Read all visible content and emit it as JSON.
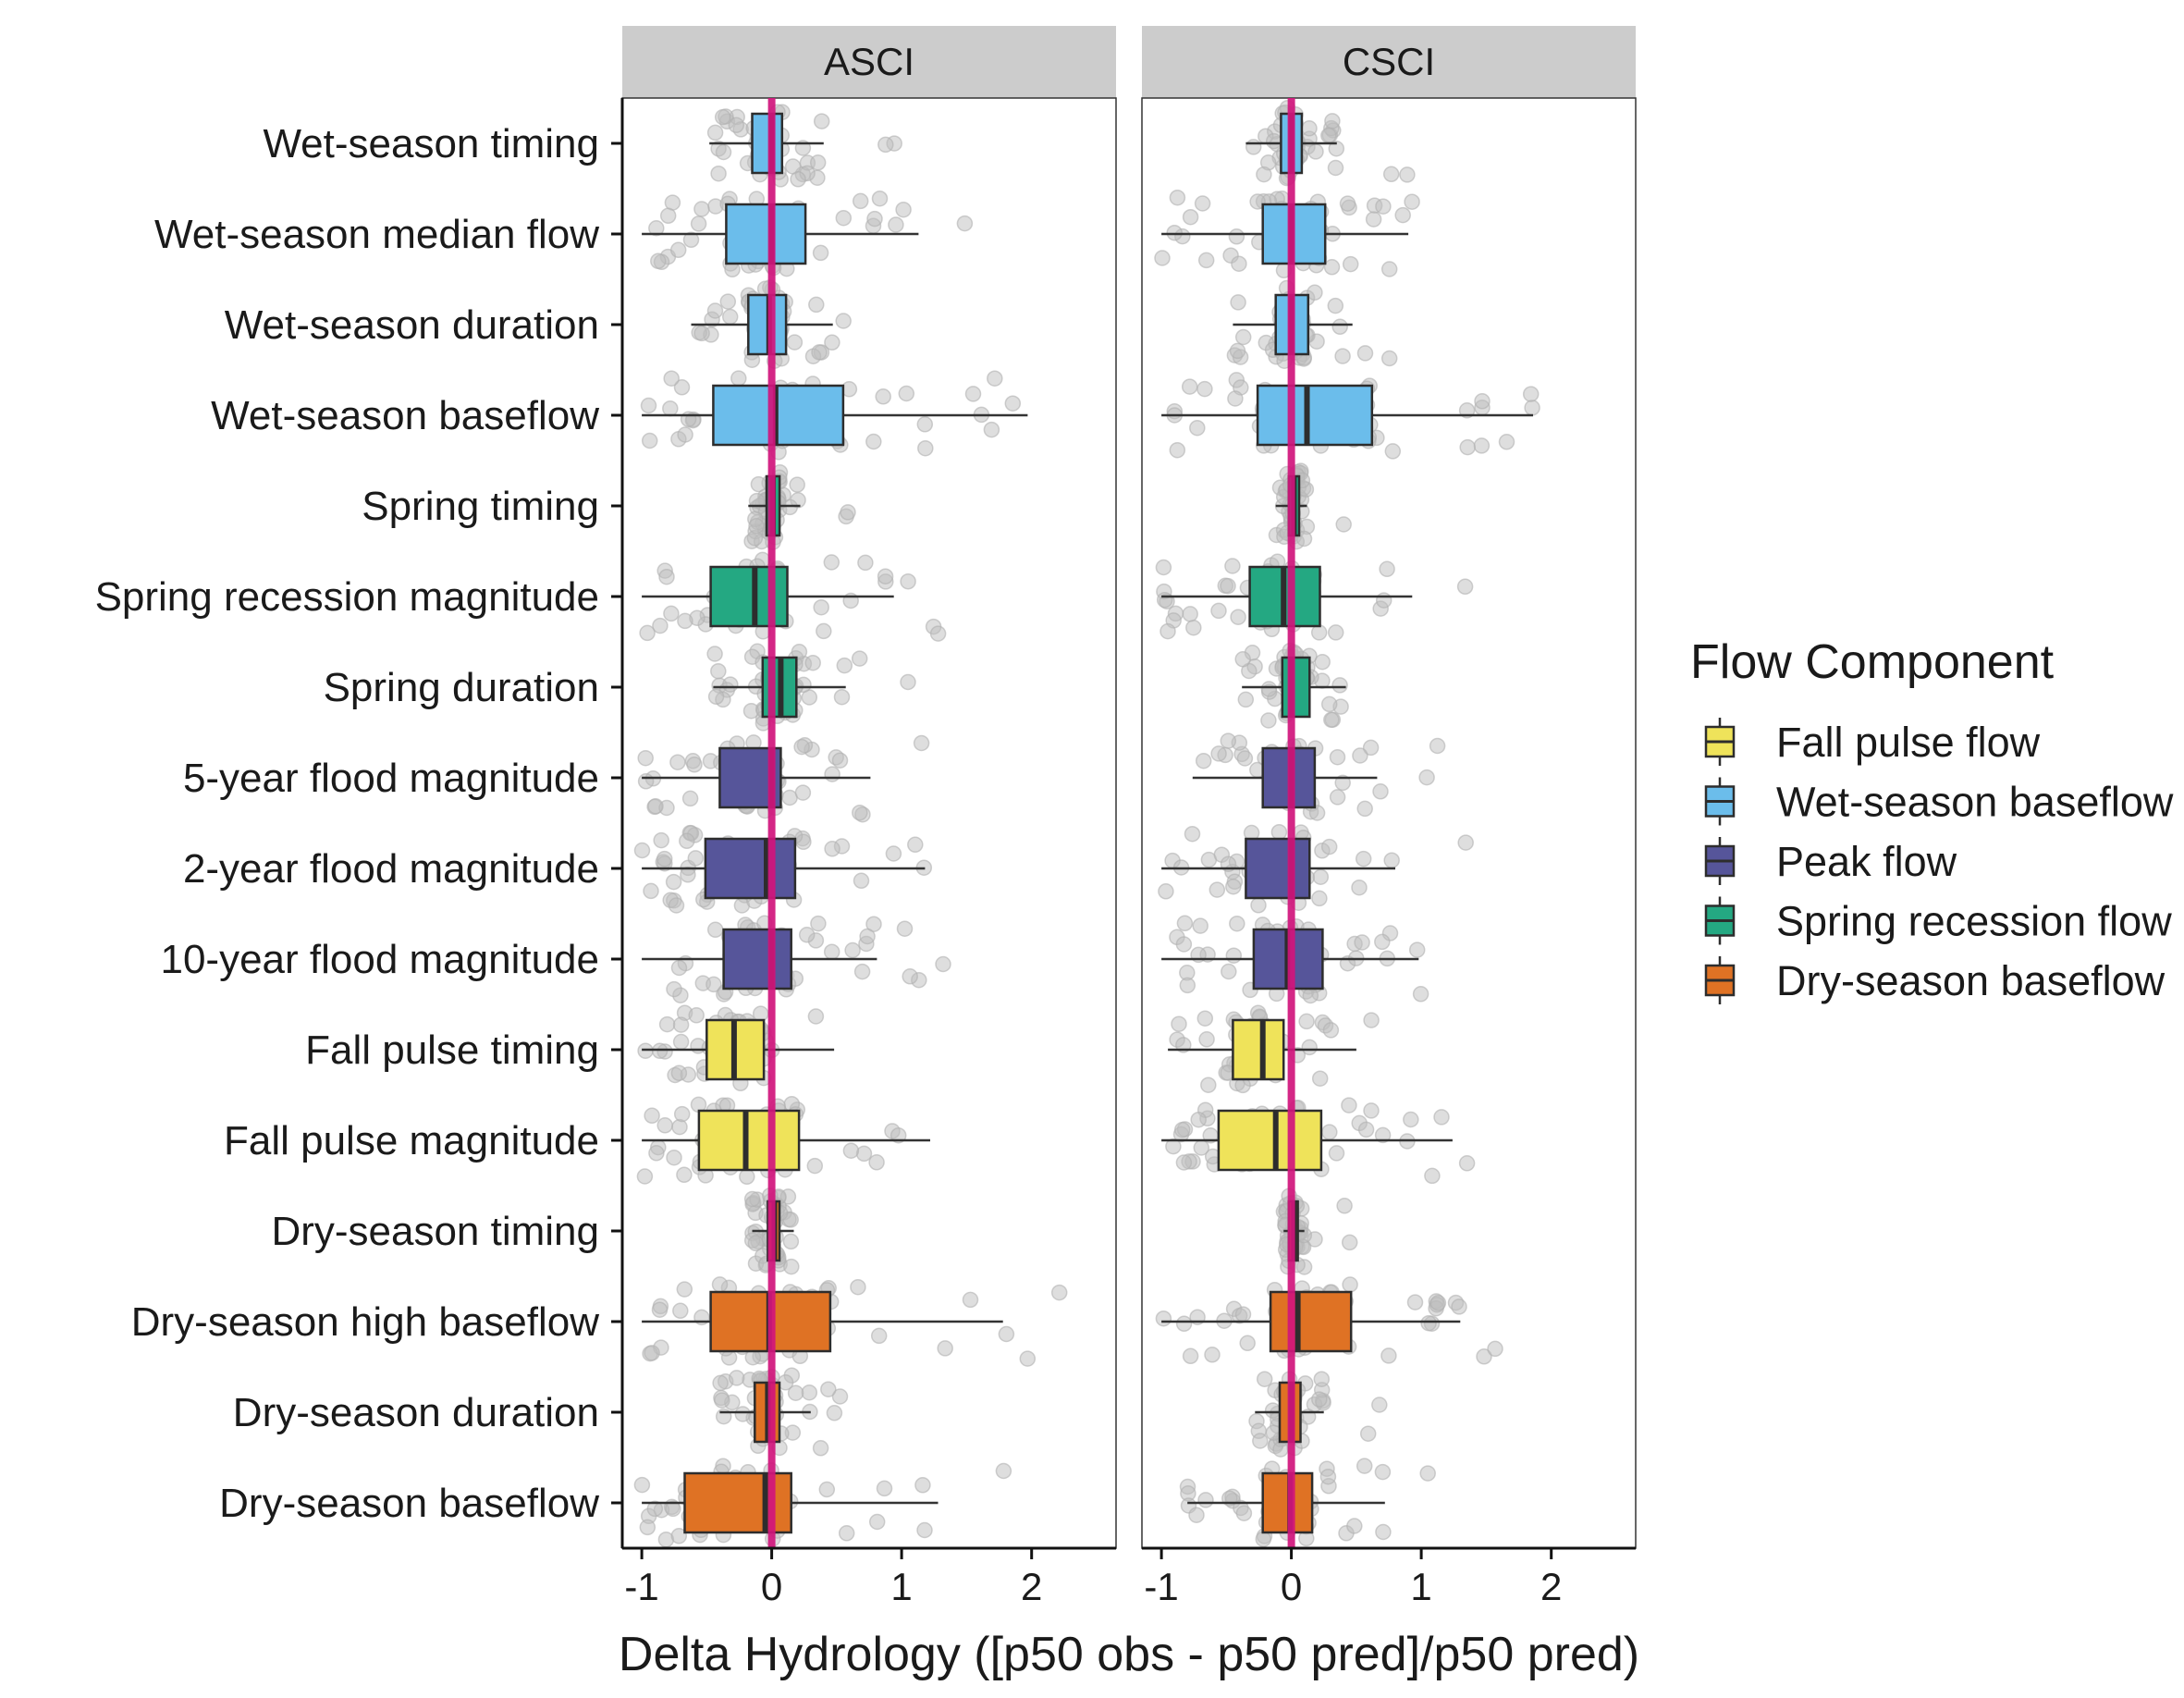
{
  "chart_data": {
    "type": "boxplot",
    "xlabel": "Delta Hydrology ([p50 obs - p50 pred]/p50 pred)",
    "xlim": [
      -1.15,
      2.65
    ],
    "xticks": [
      -1,
      0,
      1,
      2
    ],
    "reference_line": {
      "x": 0,
      "color": "#D0157C"
    },
    "panels": [
      "ASCI",
      "CSCI"
    ],
    "categories": [
      "Wet-season timing",
      "Wet-season median flow",
      "Wet-season duration",
      "Wet-season baseflow",
      "Spring timing",
      "Spring recession magnitude",
      "Spring duration",
      "5-year flood magnitude",
      "2-year flood magnitude",
      "10-year flood magnitude",
      "Fall pulse timing",
      "Fall pulse magnitude",
      "Dry-season timing",
      "Dry-season high baseflow",
      "Dry-season duration",
      "Dry-season baseflow"
    ],
    "category_component": [
      "Wet-season baseflow",
      "Wet-season baseflow",
      "Wet-season baseflow",
      "Wet-season baseflow",
      "Spring recession flow",
      "Spring recession flow",
      "Spring recession flow",
      "Peak flow",
      "Peak flow",
      "Peak flow",
      "Fall pulse flow",
      "Fall pulse flow",
      "Dry-season baseflow",
      "Dry-season baseflow",
      "Dry-season baseflow",
      "Dry-season baseflow"
    ],
    "legend": {
      "title": "Flow Component",
      "position": "right",
      "items": [
        {
          "name": "Fall pulse flow",
          "color": "#EFE35A"
        },
        {
          "name": "Wet-season baseflow",
          "color": "#6BBDEB"
        },
        {
          "name": "Peak flow",
          "color": "#56559A"
        },
        {
          "name": "Spring recession flow",
          "color": "#24A882"
        },
        {
          "name": "Dry-season baseflow",
          "color": "#DF7224"
        }
      ]
    },
    "series": [
      {
        "panel": "ASCI",
        "boxes": [
          {
            "whisker_low": -0.48,
            "q1": -0.15,
            "median": 0.0,
            "q3": 0.08,
            "whisker_high": 0.4
          },
          {
            "whisker_low": -1.0,
            "q1": -0.35,
            "median": 0.0,
            "q3": 0.26,
            "whisker_high": 1.13
          },
          {
            "whisker_low": -0.62,
            "q1": -0.18,
            "median": -0.02,
            "q3": 0.11,
            "whisker_high": 0.47
          },
          {
            "whisker_low": -1.0,
            "q1": -0.45,
            "median": 0.03,
            "q3": 0.55,
            "whisker_high": 1.97
          },
          {
            "whisker_low": -0.18,
            "q1": -0.04,
            "median": 0.01,
            "q3": 0.06,
            "whisker_high": 0.22
          },
          {
            "whisker_low": -1.0,
            "q1": -0.47,
            "median": -0.13,
            "q3": 0.12,
            "whisker_high": 0.94
          },
          {
            "whisker_low": -0.45,
            "q1": -0.07,
            "median": 0.07,
            "q3": 0.19,
            "whisker_high": 0.57
          },
          {
            "whisker_low": -1.0,
            "q1": -0.4,
            "median": 0.0,
            "q3": 0.07,
            "whisker_high": 0.76
          },
          {
            "whisker_low": -1.0,
            "q1": -0.51,
            "median": -0.04,
            "q3": 0.18,
            "whisker_high": 1.18
          },
          {
            "whisker_low": -1.0,
            "q1": -0.37,
            "median": 0.0,
            "q3": 0.15,
            "whisker_high": 0.81
          },
          {
            "whisker_low": -1.0,
            "q1": -0.5,
            "median": -0.29,
            "q3": -0.06,
            "whisker_high": 0.48
          },
          {
            "whisker_low": -1.0,
            "q1": -0.56,
            "median": -0.2,
            "q3": 0.21,
            "whisker_high": 1.22
          },
          {
            "whisker_low": -0.15,
            "q1": -0.03,
            "median": 0.02,
            "q3": 0.06,
            "whisker_high": 0.17
          },
          {
            "whisker_low": -1.0,
            "q1": -0.47,
            "median": -0.02,
            "q3": 0.45,
            "whisker_high": 1.78
          },
          {
            "whisker_low": -0.4,
            "q1": -0.13,
            "median": -0.03,
            "q3": 0.06,
            "whisker_high": 0.3
          },
          {
            "whisker_low": -1.0,
            "q1": -0.67,
            "median": -0.05,
            "q3": 0.15,
            "whisker_high": 1.28
          }
        ]
      },
      {
        "panel": "CSCI",
        "boxes": [
          {
            "whisker_low": -0.35,
            "q1": -0.08,
            "median": 0.0,
            "q3": 0.08,
            "whisker_high": 0.35
          },
          {
            "whisker_low": -1.0,
            "q1": -0.22,
            "median": 0.0,
            "q3": 0.26,
            "whisker_high": 0.9
          },
          {
            "whisker_low": -0.45,
            "q1": -0.12,
            "median": 0.0,
            "q3": 0.13,
            "whisker_high": 0.47
          },
          {
            "whisker_low": -1.0,
            "q1": -0.26,
            "median": 0.12,
            "q3": 0.62,
            "whisker_high": 1.86
          },
          {
            "whisker_low": -0.12,
            "q1": -0.02,
            "median": 0.02,
            "q3": 0.06,
            "whisker_high": 0.12
          },
          {
            "whisker_low": -1.0,
            "q1": -0.32,
            "median": -0.06,
            "q3": 0.22,
            "whisker_high": 0.93
          },
          {
            "whisker_low": -0.38,
            "q1": -0.07,
            "median": 0.0,
            "q3": 0.14,
            "whisker_high": 0.42
          },
          {
            "whisker_low": -0.76,
            "q1": -0.22,
            "median": 0.0,
            "q3": 0.18,
            "whisker_high": 0.66
          },
          {
            "whisker_low": -1.0,
            "q1": -0.35,
            "median": 0.0,
            "q3": 0.14,
            "whisker_high": 0.8
          },
          {
            "whisker_low": -1.0,
            "q1": -0.29,
            "median": -0.03,
            "q3": 0.24,
            "whisker_high": 0.98
          },
          {
            "whisker_low": -0.95,
            "q1": -0.45,
            "median": -0.22,
            "q3": -0.06,
            "whisker_high": 0.5
          },
          {
            "whisker_low": -1.0,
            "q1": -0.56,
            "median": -0.12,
            "q3": 0.23,
            "whisker_high": 1.24
          },
          {
            "whisker_low": -0.06,
            "q1": -0.02,
            "median": 0.02,
            "q3": 0.05,
            "whisker_high": 0.1
          },
          {
            "whisker_low": -1.0,
            "q1": -0.16,
            "median": 0.05,
            "q3": 0.46,
            "whisker_high": 1.3
          },
          {
            "whisker_low": -0.28,
            "q1": -0.09,
            "median": 0.0,
            "q3": 0.07,
            "whisker_high": 0.25
          },
          {
            "whisker_low": -0.8,
            "q1": -0.22,
            "median": -0.01,
            "q3": 0.16,
            "whisker_high": 0.72
          }
        ]
      }
    ]
  }
}
